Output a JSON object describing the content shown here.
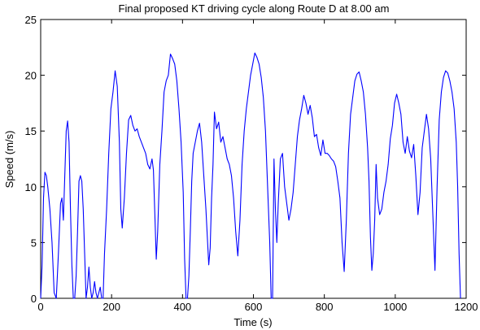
{
  "chart_data": {
    "type": "line",
    "title": "Final proposed KT driving cycle along Route D at 8.00 am",
    "xlabel": "Time (s)",
    "ylabel": "Speed (m/s)",
    "xlim": [
      0,
      1200
    ],
    "ylim": [
      0,
      25
    ],
    "xticks": [
      0,
      200,
      400,
      600,
      800,
      1000,
      1200
    ],
    "yticks": [
      0,
      5,
      10,
      15,
      20,
      25
    ],
    "grid": false,
    "line_color": "#0000ff",
    "series": [
      {
        "x": [
          0,
          4,
          8,
          12,
          16,
          20,
          26,
          32,
          38,
          44,
          50,
          56,
          60,
          64,
          68,
          72,
          76,
          80,
          84,
          88,
          92,
          96,
          100,
          104,
          108,
          112,
          116,
          120,
          124,
          128,
          132,
          136,
          140,
          144,
          148,
          152,
          156,
          160,
          164,
          168,
          172,
          176,
          180,
          186,
          192,
          198,
          204,
          210,
          216,
          222,
          226,
          230,
          236,
          242,
          248,
          254,
          260,
          266,
          272,
          278,
          284,
          290,
          296,
          302,
          308,
          314,
          318,
          322,
          326,
          330,
          336,
          342,
          348,
          354,
          360,
          366,
          372,
          378,
          384,
          390,
          396,
          402,
          406,
          410,
          414,
          418,
          422,
          426,
          430,
          436,
          442,
          448,
          454,
          460,
          466,
          470,
          474,
          478,
          482,
          486,
          490,
          496,
          502,
          508,
          514,
          520,
          526,
          532,
          538,
          544,
          550,
          556,
          562,
          568,
          574,
          580,
          586,
          592,
          598,
          604,
          610,
          616,
          622,
          628,
          634,
          640,
          646,
          650,
          654,
          658,
          662,
          666,
          670,
          676,
          682,
          688,
          694,
          700,
          706,
          712,
          718,
          724,
          730,
          736,
          742,
          748,
          754,
          760,
          766,
          772,
          778,
          784,
          790,
          796,
          802,
          808,
          814,
          820,
          826,
          832,
          838,
          844,
          850,
          856,
          862,
          868,
          874,
          880,
          886,
          892,
          898,
          904,
          910,
          916,
          922,
          926,
          930,
          934,
          938,
          942,
          946,
          950,
          956,
          962,
          968,
          974,
          980,
          986,
          992,
          998,
          1004,
          1010,
          1016,
          1022,
          1028,
          1034,
          1040,
          1046,
          1052,
          1058,
          1064,
          1070,
          1076,
          1082,
          1088,
          1094,
          1100,
          1106,
          1112,
          1118,
          1124,
          1130,
          1136,
          1142,
          1148,
          1154,
          1160,
          1166,
          1172,
          1176,
          1180,
          1184
        ],
        "y": [
          0,
          3,
          9,
          11.3,
          11,
          10,
          8,
          5,
          0.5,
          0,
          4,
          8.5,
          9,
          7,
          11,
          15,
          15.9,
          14,
          8,
          3,
          0,
          0,
          2,
          6,
          10.5,
          11,
          10.5,
          8,
          4,
          0,
          1,
          2.8,
          1,
          0,
          0.5,
          1.5,
          0.5,
          0,
          0.5,
          1,
          0,
          0,
          4,
          8,
          13,
          17,
          18.5,
          20.4,
          19,
          14,
          8,
          6.3,
          9,
          13,
          16,
          16.4,
          15.5,
          15,
          15.2,
          14.5,
          14,
          13.5,
          13,
          12,
          11.6,
          12.5,
          11.5,
          7.5,
          3.5,
          6,
          12,
          15,
          18.5,
          19.5,
          20,
          21.9,
          21.5,
          21,
          19.5,
          17,
          14,
          9.5,
          3.5,
          0,
          0,
          2,
          6,
          10.5,
          13,
          14,
          15,
          15.7,
          14,
          11,
          8,
          5.5,
          3,
          4.5,
          9,
          12,
          16.7,
          15.2,
          15.8,
          14,
          14.5,
          13.5,
          12.5,
          12,
          11,
          9,
          6,
          3.8,
          7,
          12,
          15,
          17,
          18.5,
          20,
          21,
          22,
          21.6,
          21,
          19.8,
          18,
          15,
          10,
          5,
          0,
          0,
          12.5,
          8,
          5,
          8.5,
          12.5,
          13,
          10,
          8.5,
          7,
          8,
          9.5,
          12,
          14.5,
          16,
          17,
          18.2,
          17.5,
          16.5,
          17.3,
          16.2,
          14.5,
          14.7,
          13.5,
          12.8,
          14.2,
          13,
          13,
          12.8,
          12.5,
          12.3,
          11.8,
          10.5,
          9,
          5,
          2.4,
          7,
          13,
          16.5,
          18,
          19.5,
          20.1,
          20.3,
          19.5,
          18.5,
          16.5,
          13.5,
          10.5,
          5.5,
          2.5,
          4,
          7,
          12,
          9,
          7.5,
          8,
          9.5,
          10.5,
          12,
          14.3,
          15.5,
          17.5,
          18.3,
          17.5,
          16.5,
          14,
          13,
          14.5,
          13.2,
          12.6,
          13.8,
          11,
          7.5,
          9.5,
          13.5,
          15,
          16.5,
          15.2,
          12.5,
          7.5,
          2.5,
          10,
          16,
          18.5,
          19.8,
          20.4,
          20.2,
          19.5,
          18.5,
          17,
          14,
          10,
          4,
          0
        ]
      }
    ]
  }
}
